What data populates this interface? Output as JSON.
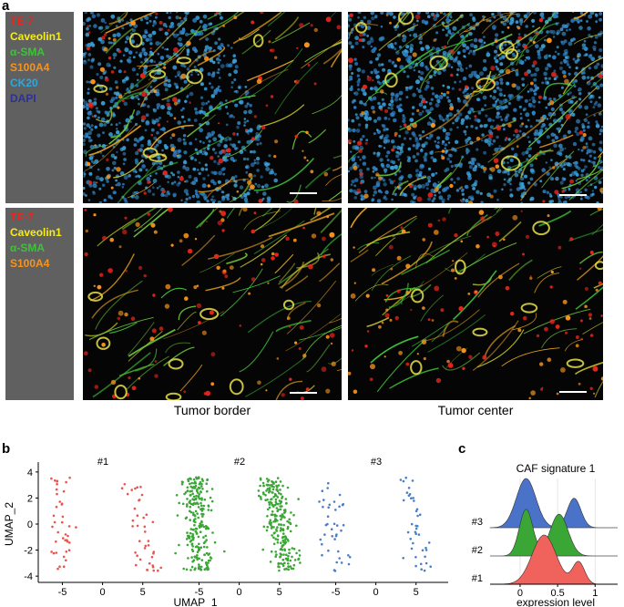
{
  "panel_a": {
    "letter": "a",
    "legend_top": [
      {
        "label": "TE-7",
        "color": "#e8251c"
      },
      {
        "label": "Caveolin1",
        "color": "#f5ec1a"
      },
      {
        "label": "α-SMA",
        "color": "#3ec23a"
      },
      {
        "label": "S100A4",
        "color": "#f7941d"
      },
      {
        "label": "CK20",
        "color": "#29a9e0"
      },
      {
        "label": "DAPI",
        "color": "#2e3192"
      }
    ],
    "legend_bottom": [
      {
        "label": "TE-7",
        "color": "#e8251c"
      },
      {
        "label": "Caveolin1",
        "color": "#f5ec1a"
      },
      {
        "label": "α-SMA",
        "color": "#3ec23a"
      },
      {
        "label": "S100A4",
        "color": "#f7941d"
      }
    ],
    "captions": [
      "Tumor border",
      "Tumor center"
    ]
  },
  "panel_b": {
    "letter": "b",
    "chart_data": {
      "type": "scatter",
      "xlabel": "UMAP_1",
      "ylabel": "UMAP_2",
      "xticks": [
        -5,
        0,
        5
      ],
      "yticks": [
        4,
        2,
        0,
        -2,
        -4
      ],
      "xlim": [
        -7.5,
        8.5
      ],
      "ylim": [
        -4.2,
        4.2
      ],
      "facets": [
        {
          "title": "#1",
          "color": "#e8554e",
          "density": "low"
        },
        {
          "title": "#2",
          "color": "#3aa635",
          "density": "high"
        },
        {
          "title": "#3",
          "color": "#4a7fc4",
          "density": "low"
        }
      ]
    }
  },
  "panel_c": {
    "letter": "c",
    "chart_data": {
      "type": "area",
      "title": "CAF signature 1",
      "xlabel": "expression level",
      "xticks": [
        0,
        0.5,
        1.0
      ],
      "xlim": [
        -0.4,
        1.3
      ],
      "series": [
        {
          "name": "#3",
          "color": "#4a72c8",
          "peaks": [
            {
              "mu": 0.08,
              "sd": 0.13,
              "h": 1.0
            },
            {
              "mu": 0.72,
              "sd": 0.09,
              "h": 0.6
            }
          ]
        },
        {
          "name": "#2",
          "color": "#3aa635",
          "peaks": [
            {
              "mu": 0.08,
              "sd": 0.09,
              "h": 0.95
            },
            {
              "mu": 0.52,
              "sd": 0.12,
              "h": 0.85
            }
          ]
        },
        {
          "name": "#1",
          "color": "#f0625c",
          "peaks": [
            {
              "mu": 0.32,
              "sd": 0.16,
              "h": 1.0
            },
            {
              "mu": 0.78,
              "sd": 0.08,
              "h": 0.45
            }
          ]
        }
      ]
    }
  }
}
